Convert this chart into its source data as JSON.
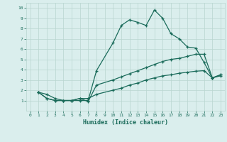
{
  "title": "",
  "xlabel": "Humidex (Indice chaleur)",
  "background_color": "#daeeed",
  "grid_color": "#b8d5d0",
  "line_color": "#1a6b5a",
  "xlim": [
    -0.5,
    23.5
  ],
  "ylim": [
    0,
    10.5
  ],
  "xticks": [
    0,
    1,
    2,
    3,
    4,
    5,
    6,
    7,
    8,
    9,
    10,
    11,
    12,
    13,
    14,
    15,
    16,
    17,
    18,
    19,
    20,
    21,
    22,
    23
  ],
  "yticks": [
    1,
    2,
    3,
    4,
    5,
    6,
    7,
    8,
    9,
    10
  ],
  "line1_x": [
    1,
    2,
    3,
    4,
    5,
    6,
    7,
    8,
    10,
    11,
    12,
    13,
    14,
    15,
    16,
    17,
    18,
    19,
    20,
    21,
    22,
    23
  ],
  "line1_y": [
    1.8,
    1.6,
    1.2,
    1.0,
    1.0,
    1.0,
    1.0,
    3.9,
    6.6,
    8.3,
    8.85,
    8.6,
    8.3,
    9.8,
    9.0,
    7.5,
    7.0,
    6.2,
    6.1,
    4.7,
    3.2,
    3.4
  ],
  "line2_x": [
    1,
    2,
    3,
    4,
    5,
    6,
    7,
    8,
    10,
    11,
    12,
    13,
    14,
    15,
    16,
    17,
    18,
    19,
    20,
    21,
    22,
    23
  ],
  "line2_y": [
    1.8,
    1.2,
    1.0,
    1.0,
    1.0,
    1.2,
    0.9,
    2.5,
    3.0,
    3.3,
    3.6,
    3.9,
    4.2,
    4.5,
    4.8,
    5.0,
    5.1,
    5.3,
    5.5,
    5.5,
    3.2,
    3.5
  ],
  "line3_x": [
    1,
    2,
    3,
    4,
    5,
    6,
    7,
    8,
    10,
    11,
    12,
    13,
    14,
    15,
    16,
    17,
    18,
    19,
    20,
    21,
    22,
    23
  ],
  "line3_y": [
    1.8,
    1.2,
    1.0,
    1.0,
    1.0,
    1.2,
    1.2,
    1.6,
    2.0,
    2.2,
    2.5,
    2.7,
    3.0,
    3.2,
    3.4,
    3.5,
    3.65,
    3.75,
    3.85,
    3.9,
    3.2,
    3.5
  ]
}
